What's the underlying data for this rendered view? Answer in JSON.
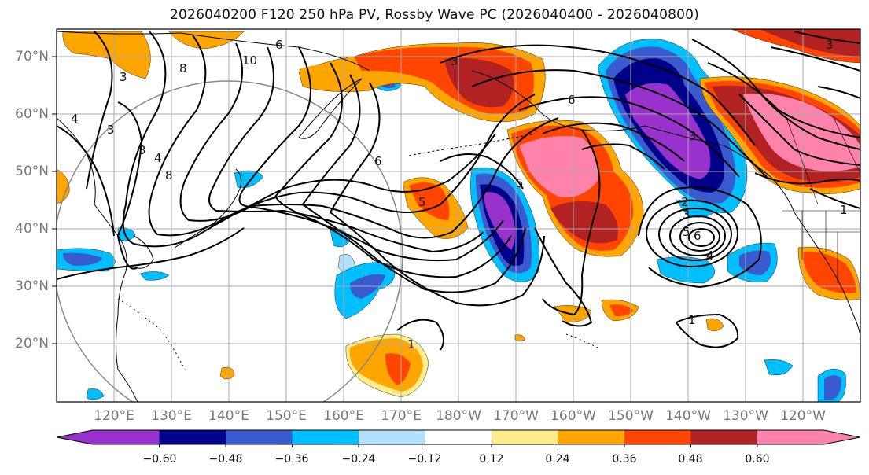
{
  "title": "2026040200 F120 250 hPa PV, Rossby Wave PC (2026040400 - 2026040800)",
  "lat_labels": [
    "70°N",
    "60°N",
    "50°N",
    "40°N",
    "30°N",
    "20°N"
  ],
  "lon_labels": [
    "120°E",
    "130°E",
    "140°E",
    "150°E",
    "160°E",
    "170°E",
    "180°W",
    "170°W",
    "160°W",
    "150°W",
    "140°W",
    "130°W",
    "120°W"
  ],
  "colorbar": {
    "colors": [
      "#9932cc",
      "#00008b",
      "#3a5bd0",
      "#00bfff",
      "#b0e2ff",
      "#ffffff",
      "#ffec8b",
      "#ffa500",
      "#ff4500",
      "#b22222",
      "#ff82ab"
    ],
    "tick_labels": [
      "−0.60",
      "−0.48",
      "−0.36",
      "−0.24",
      "−0.12",
      "0.12",
      "0.24",
      "0.36",
      "0.48",
      "0.60"
    ]
  },
  "contour_labels": [
    "3",
    "8",
    "10",
    "3",
    "4",
    "3",
    "4",
    "8",
    "3",
    "6",
    "6",
    "5",
    "5",
    "6",
    "3",
    "2",
    "3",
    "5",
    "6",
    "4",
    "1",
    "1",
    "1",
    "3"
  ]
}
